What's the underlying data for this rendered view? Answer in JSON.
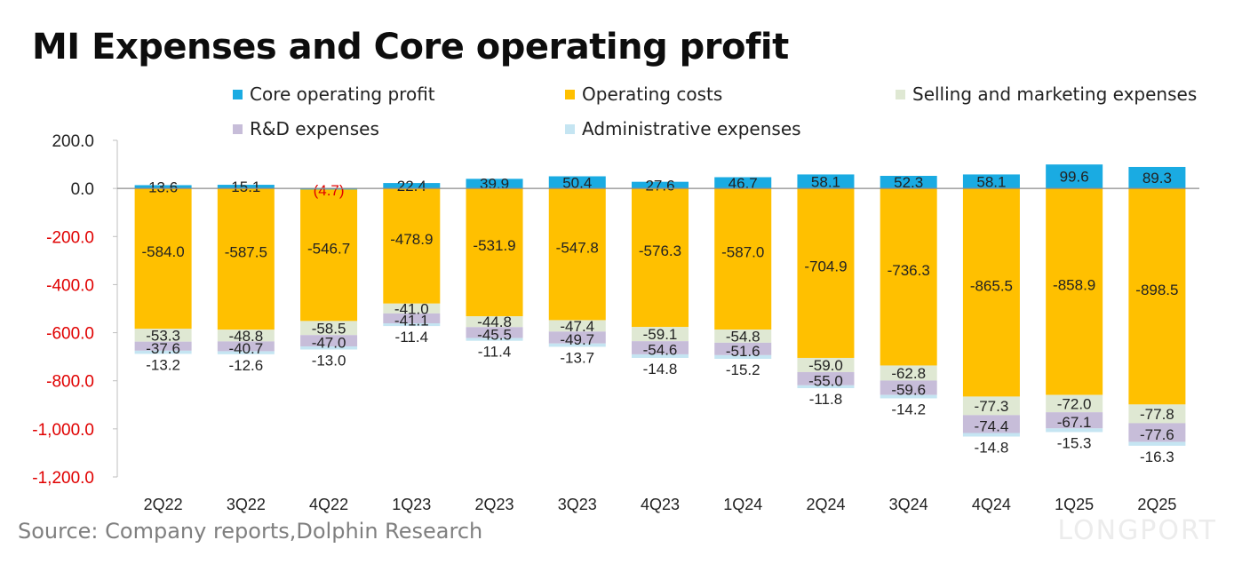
{
  "title": "MI Expenses and Core operating profit",
  "source": "Source: Company reports,Dolphin Research",
  "watermark": "LONGPORT",
  "colors": {
    "core_operating_profit": "#1aabe2",
    "operating_costs": "#ffc000",
    "selling_and_marketing": "#dfe8d3",
    "rnd": "#c7bdd9",
    "administrative": "#c5e5f2",
    "negative_tick": "#e00000",
    "negative_label": "#e00000"
  },
  "chart_data": {
    "type": "bar",
    "stacked": true,
    "categories": [
      "2Q22",
      "3Q22",
      "4Q22",
      "1Q23",
      "2Q23",
      "3Q23",
      "4Q23",
      "1Q24",
      "2Q24",
      "3Q24",
      "4Q24",
      "1Q25",
      "2Q25"
    ],
    "ylim": [
      -1200,
      200
    ],
    "yticks": [
      200,
      0,
      -200,
      -400,
      -600,
      -800,
      -1000,
      -1200
    ],
    "ytick_labels": [
      "200.0",
      "0.0",
      "-200.0",
      "-400.0",
      "-600.0",
      "-800.0",
      "-1,000.0",
      "-1,200.0"
    ],
    "legend_position": "top",
    "series": [
      {
        "name": "Core operating profit",
        "key": "core_operating_profit",
        "values": [
          13.6,
          15.1,
          -4.7,
          22.4,
          39.9,
          50.4,
          27.6,
          46.7,
          58.1,
          52.3,
          58.1,
          99.6,
          89.3
        ],
        "labels": [
          "13.6",
          "15.1",
          "(4.7)",
          "22.4",
          "39.9",
          "50.4",
          "27.6",
          "46.7",
          "58.1",
          "52.3",
          "58.1",
          "99.6",
          "89.3"
        ]
      },
      {
        "name": "Operating costs",
        "key": "operating_costs",
        "values": [
          -584.0,
          -587.5,
          -546.7,
          -478.9,
          -531.9,
          -547.8,
          -576.3,
          -587.0,
          -704.9,
          -736.3,
          -865.5,
          -858.9,
          -898.5
        ],
        "labels": [
          "-584.0",
          "-587.5",
          "-546.7",
          "-478.9",
          "-531.9",
          "-547.8",
          "-576.3",
          "-587.0",
          "-704.9",
          "-736.3",
          "-865.5",
          "-858.9",
          "-898.5"
        ]
      },
      {
        "name": "Selling and marketing expenses",
        "key": "selling_and_marketing",
        "values": [
          -53.3,
          -48.8,
          -58.5,
          -41.0,
          -44.8,
          -47.4,
          -59.1,
          -54.8,
          -59.0,
          -62.8,
          -77.3,
          -72.0,
          -77.8
        ],
        "labels": [
          "-53.3",
          "-48.8",
          "-58.5",
          "-41.0",
          "-44.8",
          "-47.4",
          "-59.1",
          "-54.8",
          "-59.0",
          "-62.8",
          "-77.3",
          "-72.0",
          "-77.8"
        ]
      },
      {
        "name": "R&D expenses",
        "key": "rnd",
        "values": [
          -37.6,
          -40.7,
          -47.0,
          -41.1,
          -45.5,
          -49.7,
          -54.6,
          -51.6,
          -55.0,
          -59.6,
          -74.4,
          -67.1,
          -77.6
        ],
        "labels": [
          "-37.6",
          "-40.7",
          "-47.0",
          "-41.1",
          "-45.5",
          "-49.7",
          "-54.6",
          "-51.6",
          "-55.0",
          "-59.6",
          "-74.4",
          "-67.1",
          "-77.6"
        ]
      },
      {
        "name": "Administrative expenses",
        "key": "administrative",
        "values": [
          -13.2,
          -12.6,
          -13.0,
          -11.4,
          -11.4,
          -13.7,
          -14.8,
          -15.2,
          -11.8,
          -14.2,
          -14.8,
          -15.3,
          -16.3
        ],
        "labels": [
          "-13.2",
          "-12.6",
          "-13.0",
          "-11.4",
          "-11.4",
          "-13.7",
          "-14.8",
          "-15.2",
          "-11.8",
          "-14.2",
          "-14.8",
          "-15.3",
          "-16.3"
        ]
      }
    ]
  },
  "legend": [
    {
      "label": "Core operating profit",
      "color": "#1aabe2"
    },
    {
      "label": "Operating costs",
      "color": "#ffc000"
    },
    {
      "label": "Selling and marketing expenses",
      "color": "#dfe8d3"
    },
    {
      "label": "R&D expenses",
      "color": "#c7bdd9"
    },
    {
      "label": "Administrative expenses",
      "color": "#c5e5f2"
    }
  ]
}
